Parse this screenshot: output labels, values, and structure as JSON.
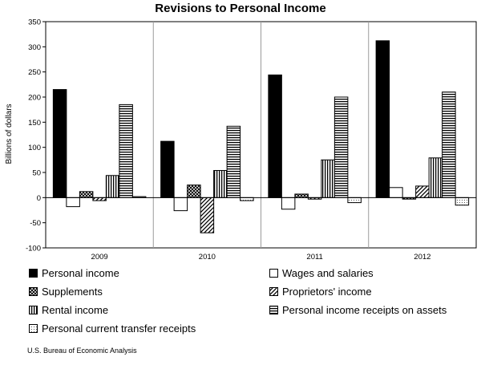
{
  "chart_data": {
    "type": "bar",
    "title": "Revisions to Personal Income",
    "ylabel": "Billions of dollars",
    "xlabel": "",
    "ylim": [
      -100,
      350
    ],
    "yticks": [
      -100,
      -50,
      0,
      50,
      100,
      150,
      200,
      250,
      300,
      350
    ],
    "grid": "vertical lines between categories",
    "legend_placement": "bottom",
    "categories": [
      "2009",
      "2010",
      "2011",
      "2012"
    ],
    "series": [
      {
        "name": "Personal income",
        "pattern": "solid-black",
        "values": [
          215,
          112,
          244,
          312
        ]
      },
      {
        "name": "Wages and salaries",
        "pattern": "white",
        "values": [
          -18,
          -26,
          -23,
          20
        ]
      },
      {
        "name": "Supplements",
        "pattern": "crosshatch",
        "values": [
          12,
          25,
          7,
          -3
        ]
      },
      {
        "name": "Proprietors' income",
        "pattern": "diagonal",
        "values": [
          -6,
          -70,
          -3,
          23
        ]
      },
      {
        "name": "Rental income",
        "pattern": "vertical-lines",
        "values": [
          44,
          54,
          75,
          79
        ]
      },
      {
        "name": "Personal income receipts on assets",
        "pattern": "horizontal-lines",
        "values": [
          185,
          142,
          200,
          210
        ]
      },
      {
        "name": "Personal current transfer receipts",
        "pattern": "dotted",
        "values": [
          2,
          -6,
          -10,
          -15
        ]
      }
    ]
  },
  "source": "U.S. Bureau of Economic Analysis"
}
